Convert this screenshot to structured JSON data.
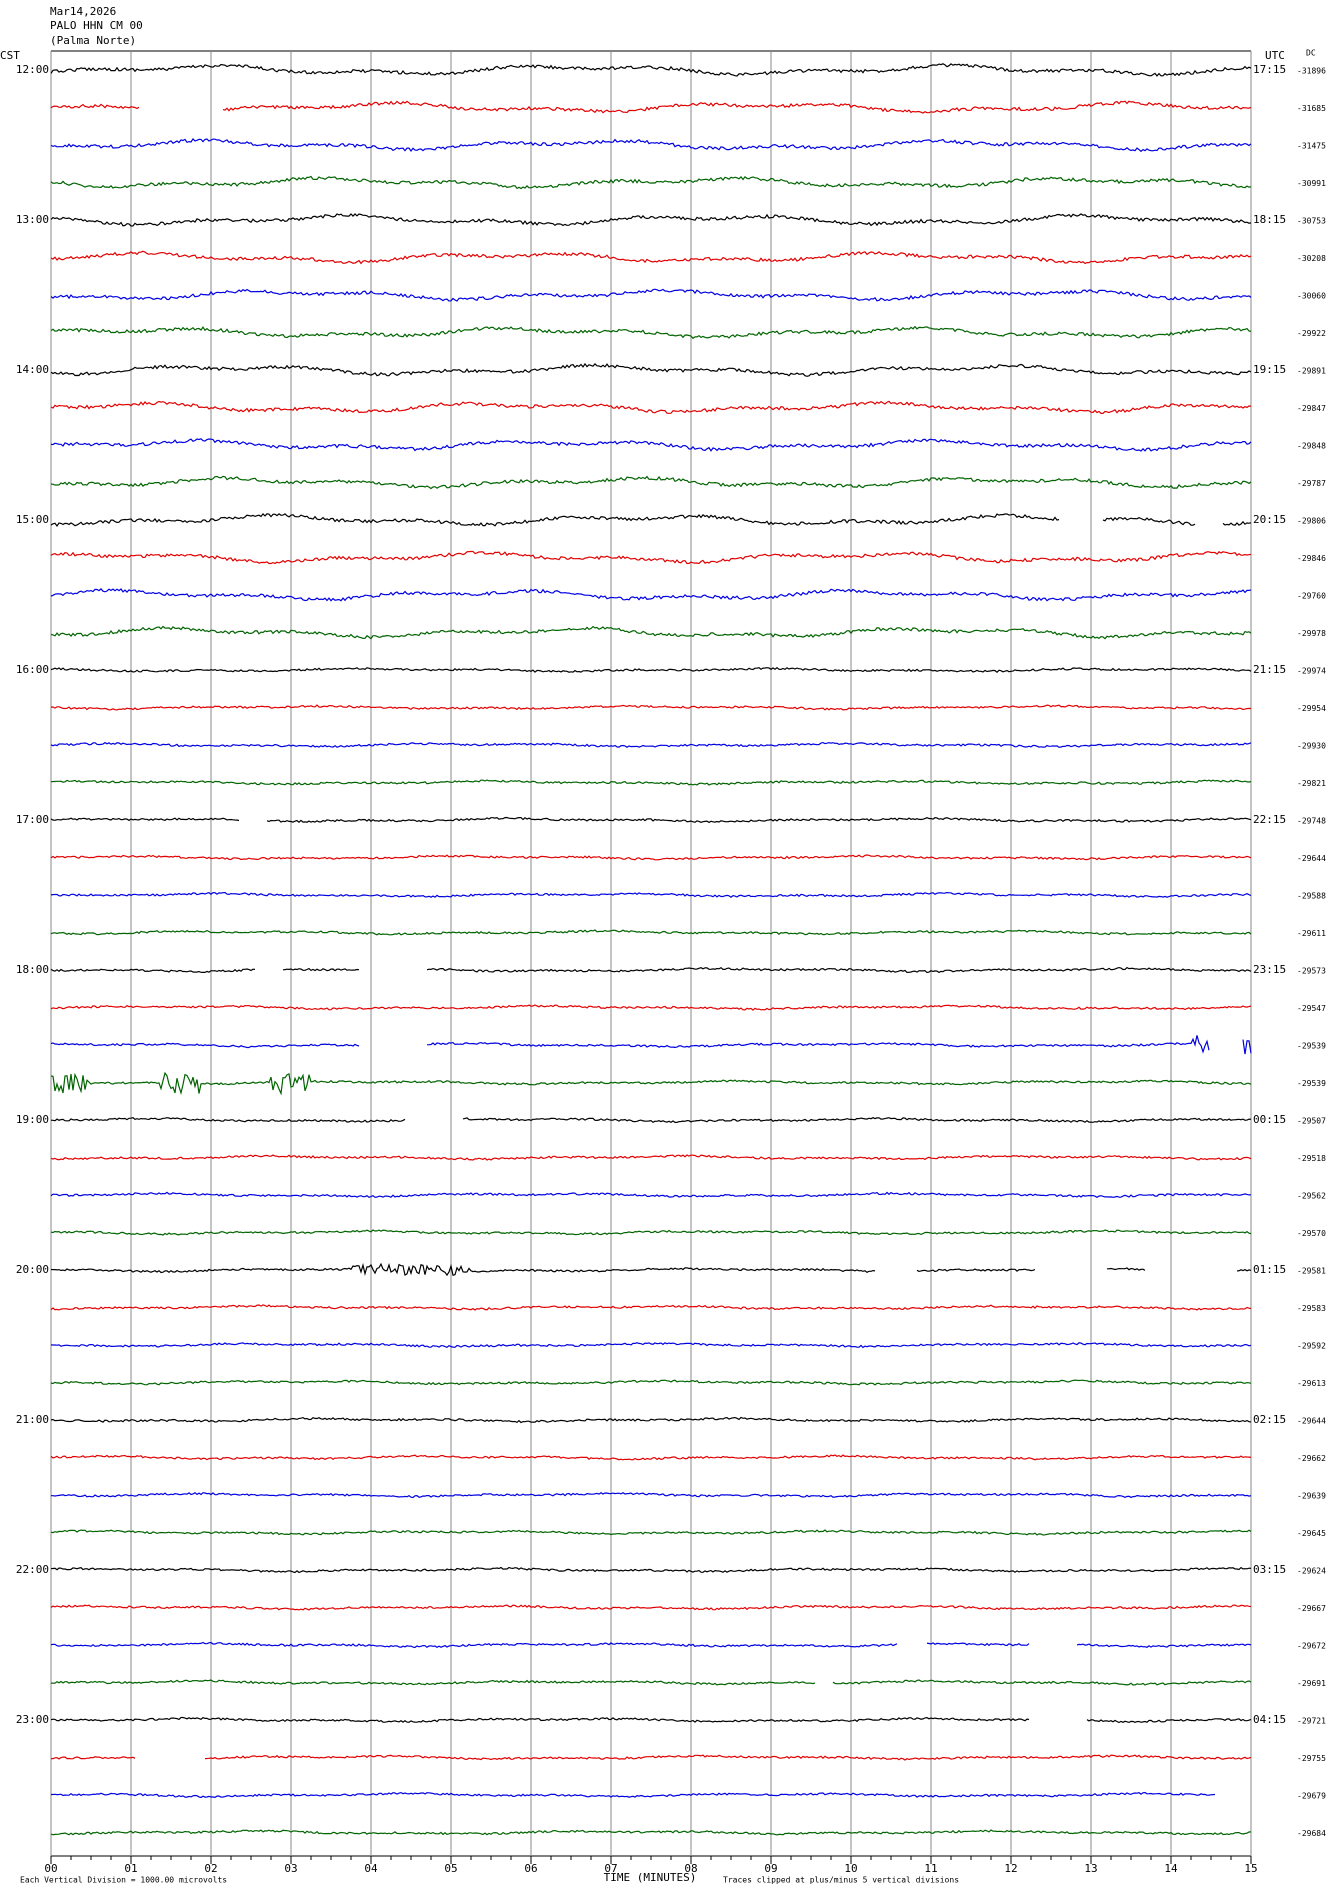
{
  "header": {
    "date": "Mar14,2026",
    "station": "PALO HHN CM 00",
    "location": "(Palma Norte)"
  },
  "left_axis": {
    "label": "CST",
    "times": [
      "12:00",
      "13:00",
      "14:00",
      "15:00",
      "16:00",
      "17:00",
      "18:00",
      "19:00",
      "20:00",
      "21:00",
      "22:00",
      "23:00"
    ]
  },
  "right_axis": {
    "label": "UTC",
    "times": [
      "17:15",
      "18:15",
      "19:15",
      "20:15",
      "21:15",
      "22:15",
      "23:15",
      "00:15",
      "01:15",
      "02:15",
      "03:15",
      "04:15"
    ]
  },
  "dc": {
    "label": "DC",
    "values": [
      -31896,
      -31685,
      -31475,
      -30991,
      -30753,
      -30208,
      -30060,
      -29922,
      -29891,
      -29847,
      -29848,
      -29787,
      -29806,
      -29846,
      -29760,
      -29978,
      -29974,
      -29954,
      -29930,
      -29821,
      -29748,
      -29644,
      -29588,
      -29611,
      -29573,
      -29547,
      -29539,
      -29539,
      -29507,
      -29518,
      -29562,
      -29570,
      -29581,
      -29583,
      -29592,
      -29613,
      -29644,
      -29662,
      -29639,
      -29645,
      -29624,
      -29667,
      -29672,
      -29691,
      -29721,
      -29755,
      -29679,
      -29684
    ]
  },
  "x_axis": {
    "label": "TIME (MINUTES)",
    "ticks": [
      "00",
      "01",
      "02",
      "03",
      "04",
      "05",
      "06",
      "07",
      "08",
      "09",
      "10",
      "11",
      "12",
      "13",
      "14",
      "15"
    ]
  },
  "footer": {
    "scale": "Each Vertical Division = 1000.00 microvolts",
    "clip": "Traces clipped at plus/minus 5 vertical divisions"
  },
  "trace_colors": [
    "#000000",
    "#e00000",
    "#0000e0",
    "#006400"
  ]
}
